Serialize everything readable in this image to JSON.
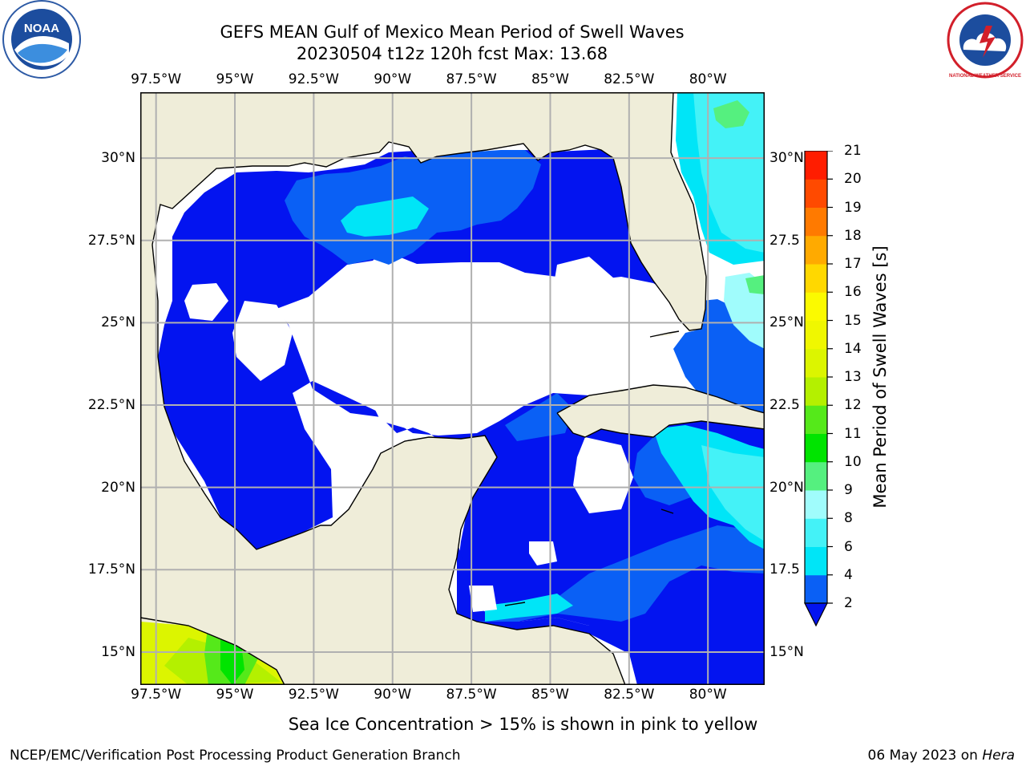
{
  "title_line1": "GEFS MEAN Gulf of Mexico Mean Period of Swell Waves",
  "title_line2": "20230504 t12z 120h fcst   Max: 13.68",
  "caption": "Sea Ice Concentration > 15% is shown in pink to yellow",
  "footer_left": "NCEP/EMC/Verification Post Processing Product Generation Branch",
  "footer_date": "06 May 2023 on",
  "footer_host": "Hera",
  "logos": {
    "left": "noaa-logo",
    "right": "national-weather-service-logo",
    "left_text": "NOAA",
    "right_text": "NATIONAL WEATHER SERVICE"
  },
  "map": {
    "lon_range": [
      -98.0,
      -78.2
    ],
    "lat_range": [
      14.0,
      32.0
    ],
    "lon_ticks": [
      -97.5,
      -95,
      -92.5,
      -90,
      -87.5,
      -85,
      -82.5,
      -80
    ],
    "lat_ticks": [
      15,
      17.5,
      20,
      22.5,
      25,
      27.5,
      30
    ],
    "lon_labels": [
      "97.5°W",
      "95°W",
      "92.5°W",
      "90°W",
      "87.5°W",
      "85°W",
      "82.5°W",
      "80°W"
    ],
    "lat_labels_left": [
      "15°N",
      "17.5°N",
      "20°N",
      "22.5°N",
      "25°N",
      "27.5°N",
      "30°N"
    ],
    "lat_labels_right": [
      "15°N",
      "17.5",
      "20°N",
      "22.5",
      "25°N",
      "27.5",
      "30°N"
    ],
    "colors": {
      "land": "#efedd9",
      "ocean_missing": "#ffffff",
      "grid": "#b0b0b0",
      "coast": "#000000"
    }
  },
  "colorbar": {
    "label": "Mean Period of Swell Waves [s]",
    "ticks": [
      "2",
      "4",
      "6",
      "8",
      "9",
      "10",
      "11",
      "12",
      "13",
      "14",
      "15",
      "16",
      "17",
      "18",
      "19",
      "20",
      "21"
    ],
    "colors": [
      "#0a60f5",
      "#00e5f7",
      "#44f2f7",
      "#a0fcfc",
      "#55f07f",
      "#00e400",
      "#55e91a",
      "#b4f000",
      "#dcf500",
      "#f0f700",
      "#fbfa00",
      "#ffd800",
      "#ffaa00",
      "#ff7a00",
      "#ff4a00",
      "#ff1d00"
    ],
    "under_color": "#0314f0"
  }
}
